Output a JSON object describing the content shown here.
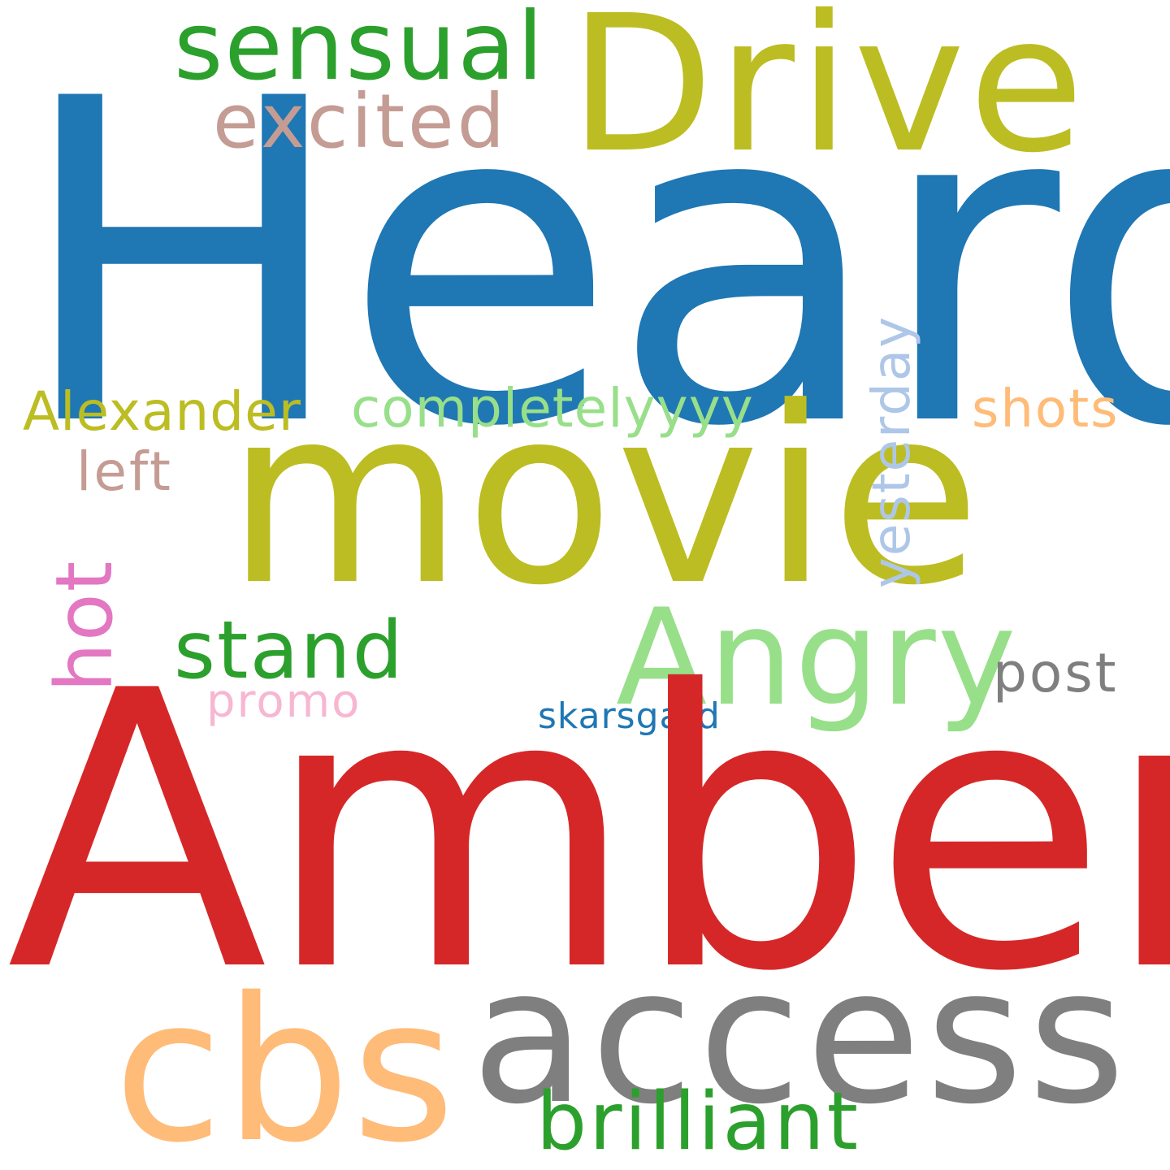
{
  "words": [
    {
      "text": "Heard",
      "color": "#1f77b4"
    },
    {
      "text": "Amber",
      "color": "#d62728"
    },
    {
      "text": "movie",
      "color": "#bcbd22"
    },
    {
      "text": "Drive",
      "color": "#bcbd22"
    },
    {
      "text": "access",
      "color": "#7f7f7f"
    },
    {
      "text": "cbs",
      "color": "#ffbb78"
    },
    {
      "text": "Angry",
      "color": "#98df8a"
    },
    {
      "text": "sensual",
      "color": "#2ca02c"
    },
    {
      "text": "stand",
      "color": "#2ca02c"
    },
    {
      "text": "brilliant",
      "color": "#2ca02c"
    },
    {
      "text": "excited",
      "color": "#c49c94"
    },
    {
      "text": "hot",
      "color": "#e377c2"
    },
    {
      "text": "Alexander",
      "color": "#bcbd22"
    },
    {
      "text": "completelyyyy",
      "color": "#98df8a"
    },
    {
      "text": "left",
      "color": "#c49c94"
    },
    {
      "text": "shots",
      "color": "#ffbb78"
    },
    {
      "text": "post",
      "color": "#7f7f7f"
    },
    {
      "text": "yesterday",
      "color": "#aec7e8"
    },
    {
      "text": "promo",
      "color": "#f7b6d2"
    },
    {
      "text": "skarsgard",
      "color": "#1f77b4"
    }
  ]
}
